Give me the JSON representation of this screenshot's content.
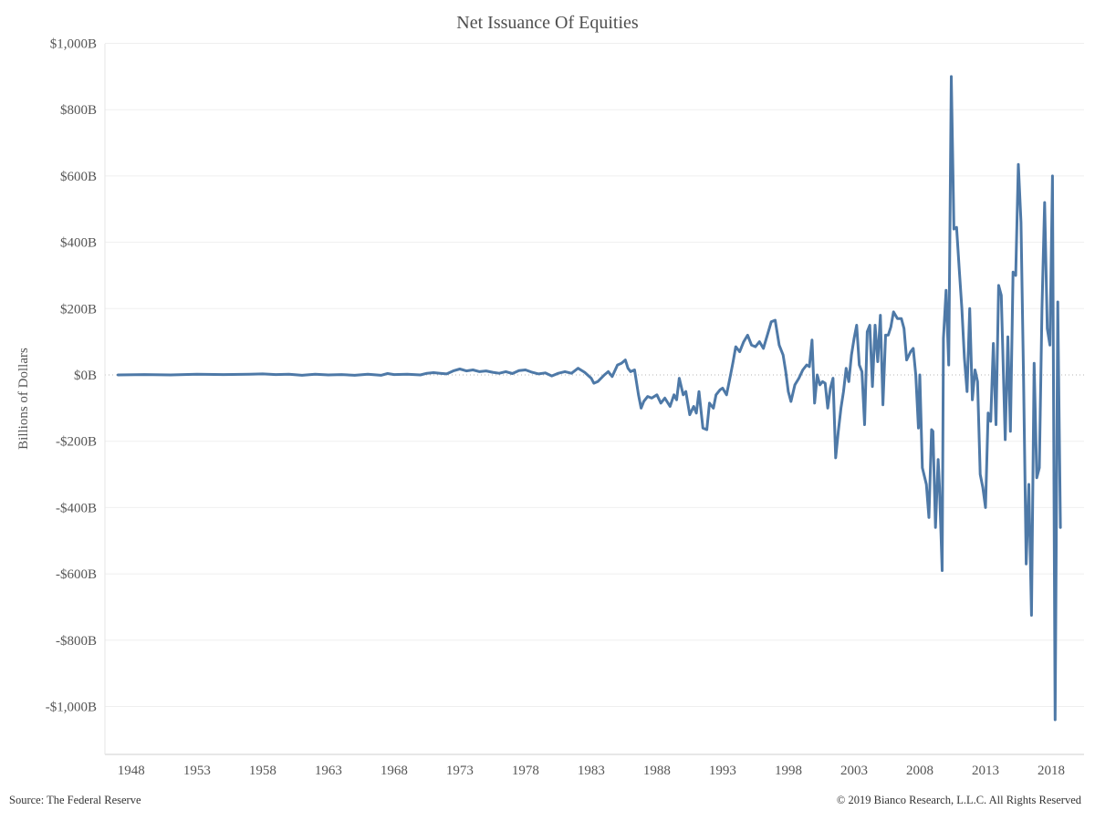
{
  "chart_data": {
    "type": "line",
    "title": "Net Issuance Of Equities",
    "xlabel": "",
    "ylabel": "Billions of Dollars",
    "ylim": [
      -1100,
      1000
    ],
    "xlim": [
      1946,
      2020.5
    ],
    "grid": true,
    "legend": "none",
    "line_color": "#4e79a7",
    "y_ticks": [
      {
        "value": 1000,
        "label": "$1,000B"
      },
      {
        "value": 800,
        "label": "$800B"
      },
      {
        "value": 600,
        "label": "$600B"
      },
      {
        "value": 400,
        "label": "$400B"
      },
      {
        "value": 200,
        "label": "$200B"
      },
      {
        "value": 0,
        "label": "$0B"
      },
      {
        "value": -200,
        "label": "-$200B"
      },
      {
        "value": -400,
        "label": "-$400B"
      },
      {
        "value": -600,
        "label": "-$600B"
      },
      {
        "value": -800,
        "label": "-$800B"
      },
      {
        "value": -1000,
        "label": "-$1,000B"
      }
    ],
    "x_ticks": [
      {
        "value": 1948,
        "label": "1948"
      },
      {
        "value": 1953,
        "label": "1953"
      },
      {
        "value": 1958,
        "label": "1958"
      },
      {
        "value": 1963,
        "label": "1963"
      },
      {
        "value": 1968,
        "label": "1968"
      },
      {
        "value": 1973,
        "label": "1973"
      },
      {
        "value": 1978,
        "label": "1978"
      },
      {
        "value": 1983,
        "label": "1983"
      },
      {
        "value": 1988,
        "label": "1988"
      },
      {
        "value": 1993,
        "label": "1993"
      },
      {
        "value": 1998,
        "label": "1998"
      },
      {
        "value": 2003,
        "label": "2003"
      },
      {
        "value": 2008,
        "label": "2008"
      },
      {
        "value": 2013,
        "label": "2013"
      },
      {
        "value": 2018,
        "label": "2018"
      }
    ],
    "series": [
      {
        "points": [
          [
            1947.0,
            0
          ],
          [
            1949.0,
            1
          ],
          [
            1951.0,
            0
          ],
          [
            1953.0,
            2
          ],
          [
            1955.0,
            1
          ],
          [
            1957.0,
            2
          ],
          [
            1958.0,
            3
          ],
          [
            1959.0,
            1
          ],
          [
            1960.0,
            2
          ],
          [
            1961.0,
            -1
          ],
          [
            1962.0,
            2
          ],
          [
            1963.0,
            0
          ],
          [
            1964.0,
            1
          ],
          [
            1965.0,
            -1
          ],
          [
            1966.0,
            2
          ],
          [
            1967.0,
            -1
          ],
          [
            1967.5,
            4
          ],
          [
            1968.0,
            1
          ],
          [
            1969.0,
            2
          ],
          [
            1970.0,
            0
          ],
          [
            1970.5,
            5
          ],
          [
            1971.0,
            7
          ],
          [
            1971.5,
            5
          ],
          [
            1972.0,
            3
          ],
          [
            1972.5,
            12
          ],
          [
            1973.0,
            18
          ],
          [
            1973.5,
            12
          ],
          [
            1974.0,
            15
          ],
          [
            1974.5,
            10
          ],
          [
            1975.0,
            12
          ],
          [
            1975.5,
            8
          ],
          [
            1976.0,
            5
          ],
          [
            1976.5,
            10
          ],
          [
            1977.0,
            4
          ],
          [
            1977.5,
            13
          ],
          [
            1978.0,
            15
          ],
          [
            1978.5,
            8
          ],
          [
            1979.0,
            3
          ],
          [
            1979.5,
            6
          ],
          [
            1980.0,
            -3
          ],
          [
            1980.5,
            5
          ],
          [
            1981.0,
            10
          ],
          [
            1981.5,
            5
          ],
          [
            1982.0,
            20
          ],
          [
            1982.5,
            8
          ],
          [
            1983.0,
            -10
          ],
          [
            1983.2,
            -25
          ],
          [
            1983.5,
            -20
          ],
          [
            1984.0,
            0
          ],
          [
            1984.3,
            10
          ],
          [
            1984.6,
            -5
          ],
          [
            1985.0,
            30
          ],
          [
            1985.3,
            35
          ],
          [
            1985.6,
            45
          ],
          [
            1985.8,
            20
          ],
          [
            1986.0,
            10
          ],
          [
            1986.3,
            15
          ],
          [
            1986.6,
            -60
          ],
          [
            1986.8,
            -100
          ],
          [
            1987.0,
            -80
          ],
          [
            1987.3,
            -65
          ],
          [
            1987.6,
            -70
          ],
          [
            1988.0,
            -60
          ],
          [
            1988.3,
            -85
          ],
          [
            1988.6,
            -70
          ],
          [
            1989.0,
            -95
          ],
          [
            1989.3,
            -60
          ],
          [
            1989.5,
            -75
          ],
          [
            1989.7,
            -10
          ],
          [
            1990.0,
            -60
          ],
          [
            1990.2,
            -50
          ],
          [
            1990.5,
            -120
          ],
          [
            1990.8,
            -95
          ],
          [
            1991.0,
            -115
          ],
          [
            1991.2,
            -50
          ],
          [
            1991.5,
            -160
          ],
          [
            1991.8,
            -165
          ],
          [
            1992.0,
            -85
          ],
          [
            1992.3,
            -100
          ],
          [
            1992.5,
            -60
          ],
          [
            1992.8,
            -45
          ],
          [
            1993.0,
            -40
          ],
          [
            1993.3,
            -60
          ],
          [
            1993.6,
            0
          ],
          [
            1993.8,
            40
          ],
          [
            1994.0,
            85
          ],
          [
            1994.3,
            70
          ],
          [
            1994.6,
            100
          ],
          [
            1994.9,
            120
          ],
          [
            1995.2,
            90
          ],
          [
            1995.5,
            85
          ],
          [
            1995.8,
            100
          ],
          [
            1996.1,
            80
          ],
          [
            1996.4,
            120
          ],
          [
            1996.7,
            160
          ],
          [
            1997.0,
            165
          ],
          [
            1997.3,
            90
          ],
          [
            1997.6,
            60
          ],
          [
            1997.8,
            10
          ],
          [
            1998.0,
            -50
          ],
          [
            1998.2,
            -80
          ],
          [
            1998.5,
            -30
          ],
          [
            1998.8,
            -10
          ],
          [
            1999.1,
            15
          ],
          [
            1999.4,
            30
          ],
          [
            1999.6,
            25
          ],
          [
            1999.8,
            105
          ],
          [
            2000.0,
            -85
          ],
          [
            2000.2,
            0
          ],
          [
            2000.4,
            -30
          ],
          [
            2000.6,
            -20
          ],
          [
            2000.8,
            -25
          ],
          [
            2001.0,
            -100
          ],
          [
            2001.2,
            -40
          ],
          [
            2001.4,
            -10
          ],
          [
            2001.6,
            -250
          ],
          [
            2001.8,
            -170
          ],
          [
            2002.0,
            -100
          ],
          [
            2002.2,
            -50
          ],
          [
            2002.4,
            20
          ],
          [
            2002.6,
            -20
          ],
          [
            2002.8,
            60
          ],
          [
            2003.0,
            110
          ],
          [
            2003.2,
            150
          ],
          [
            2003.4,
            30
          ],
          [
            2003.6,
            10
          ],
          [
            2003.8,
            -150
          ],
          [
            2004.0,
            130
          ],
          [
            2004.2,
            150
          ],
          [
            2004.4,
            -35
          ],
          [
            2004.6,
            150
          ],
          [
            2004.8,
            40
          ],
          [
            2005.0,
            180
          ],
          [
            2005.2,
            -90
          ],
          [
            2005.4,
            120
          ],
          [
            2005.6,
            120
          ],
          [
            2005.8,
            145
          ],
          [
            2006.0,
            190
          ],
          [
            2006.3,
            170
          ],
          [
            2006.6,
            170
          ],
          [
            2006.8,
            140
          ],
          [
            2007.0,
            45
          ],
          [
            2007.3,
            70
          ],
          [
            2007.5,
            80
          ],
          [
            2007.7,
            0
          ],
          [
            2007.9,
            -160
          ],
          [
            2008.0,
            0
          ],
          [
            2008.2,
            -280
          ],
          [
            2008.5,
            -330
          ],
          [
            2008.7,
            -430
          ],
          [
            2008.9,
            -165
          ],
          [
            2009.0,
            -170
          ],
          [
            2009.2,
            -460
          ],
          [
            2009.4,
            -255
          ],
          [
            2009.5,
            -340
          ],
          [
            2009.7,
            -590
          ],
          [
            2009.8,
            110
          ],
          [
            2010.0,
            255
          ],
          [
            2010.2,
            30
          ],
          [
            2010.4,
            900
          ],
          [
            2010.6,
            440
          ],
          [
            2010.8,
            445
          ],
          [
            2011.0,
            320
          ],
          [
            2011.2,
            200
          ],
          [
            2011.4,
            50
          ],
          [
            2011.6,
            -50
          ],
          [
            2011.8,
            200
          ],
          [
            2012.0,
            -75
          ],
          [
            2012.2,
            15
          ],
          [
            2012.4,
            -20
          ],
          [
            2012.6,
            -300
          ],
          [
            2012.8,
            -340
          ],
          [
            2013.0,
            -400
          ],
          [
            2013.2,
            -115
          ],
          [
            2013.4,
            -140
          ],
          [
            2013.6,
            95
          ],
          [
            2013.8,
            -150
          ],
          [
            2014.0,
            270
          ],
          [
            2014.2,
            240
          ],
          [
            2014.5,
            -195
          ],
          [
            2014.7,
            115
          ],
          [
            2014.9,
            -170
          ],
          [
            2015.1,
            310
          ],
          [
            2015.3,
            300
          ],
          [
            2015.5,
            635
          ],
          [
            2015.7,
            460
          ],
          [
            2015.9,
            -10
          ],
          [
            2016.1,
            -570
          ],
          [
            2016.3,
            -330
          ],
          [
            2016.5,
            -725
          ],
          [
            2016.7,
            35
          ],
          [
            2016.9,
            -310
          ],
          [
            2017.1,
            -280
          ],
          [
            2017.3,
            200
          ],
          [
            2017.5,
            520
          ],
          [
            2017.7,
            140
          ],
          [
            2017.9,
            90
          ],
          [
            2018.1,
            600
          ],
          [
            2018.3,
            -1040
          ],
          [
            2018.5,
            220
          ],
          [
            2018.7,
            -460
          ]
        ]
      }
    ]
  },
  "footer": {
    "source": "Source: The Federal Reserve",
    "copyright": "© 2019 Bianco Research, L.L.C. All Rights Reserved"
  }
}
